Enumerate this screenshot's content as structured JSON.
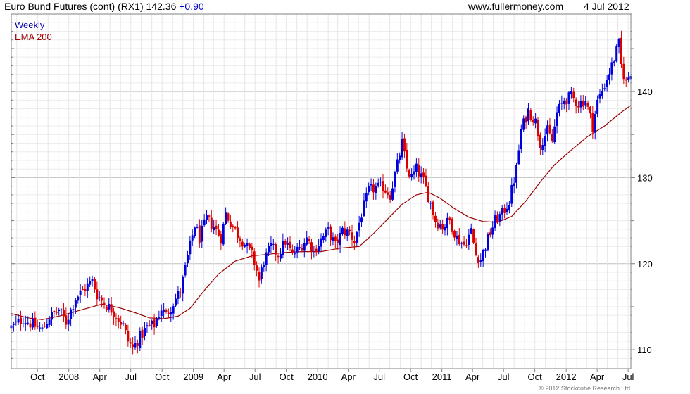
{
  "header": {
    "title": "Euro Bund Futures (cont) (RX1)",
    "last": "142.36",
    "change": "+0.90",
    "site": "www.fullermoney.com",
    "date": "4 Jul 2012"
  },
  "legend": {
    "weekly_label": "Weekly",
    "ema_label": "EMA 200"
  },
  "copyright": "© 2012 Stockcube Research Ltd",
  "colors": {
    "up": "#0000dd",
    "down": "#dd0000",
    "ema": "#990000",
    "grid": "#d6d6d6",
    "frame": "#808080"
  },
  "chart_data": {
    "type": "candlestick",
    "period": "weekly",
    "x_start": "2007-07-16",
    "x_end": "2012-07-09",
    "ylim": [
      107.8,
      149.0
    ],
    "y_ticks": [
      110,
      120,
      130,
      140
    ],
    "x_ticks": [
      {
        "label": "Oct",
        "date": "2007-10-01"
      },
      {
        "label": "2008",
        "date": "2008-01-01"
      },
      {
        "label": "Apr",
        "date": "2008-04-01"
      },
      {
        "label": "Jul",
        "date": "2008-07-01"
      },
      {
        "label": "Oct",
        "date": "2008-10-01"
      },
      {
        "label": "2009",
        "date": "2009-01-01"
      },
      {
        "label": "Apr",
        "date": "2009-04-01"
      },
      {
        "label": "Jul",
        "date": "2009-07-01"
      },
      {
        "label": "Oct",
        "date": "2009-10-01"
      },
      {
        "label": "2010",
        "date": "2010-01-01"
      },
      {
        "label": "Apr",
        "date": "2010-04-01"
      },
      {
        "label": "Jul",
        "date": "2010-07-01"
      },
      {
        "label": "Oct",
        "date": "2010-10-01"
      },
      {
        "label": "2011",
        "date": "2011-01-01"
      },
      {
        "label": "Apr",
        "date": "2011-04-01"
      },
      {
        "label": "Jul",
        "date": "2011-07-01"
      },
      {
        "label": "Oct",
        "date": "2011-10-01"
      },
      {
        "label": "2012",
        "date": "2012-01-01"
      },
      {
        "label": "Apr",
        "date": "2012-04-01"
      },
      {
        "label": "Jul",
        "date": "2012-07-01"
      }
    ],
    "price_path": [
      [
        "2007-07-16",
        112.6
      ],
      [
        "2007-08-20",
        113.6
      ],
      [
        "2007-09-17",
        112.9
      ],
      [
        "2007-10-15",
        112.3
      ],
      [
        "2007-11-05",
        113.8
      ],
      [
        "2007-12-03",
        114.6
      ],
      [
        "2007-12-24",
        113.2
      ],
      [
        "2008-01-21",
        116.0
      ],
      [
        "2008-02-18",
        117.2
      ],
      [
        "2008-03-10",
        118.0
      ],
      [
        "2008-03-24",
        116.4
      ],
      [
        "2008-04-14",
        115.4
      ],
      [
        "2008-05-05",
        114.7
      ],
      [
        "2008-05-26",
        113.6
      ],
      [
        "2008-06-09",
        112.8
      ],
      [
        "2008-06-23",
        111.0
      ],
      [
        "2008-07-07",
        110.2
      ],
      [
        "2008-07-28",
        111.5
      ],
      [
        "2008-08-18",
        112.6
      ],
      [
        "2008-09-08",
        112.9
      ],
      [
        "2008-09-29",
        114.8
      ],
      [
        "2008-10-13",
        114.0
      ],
      [
        "2008-11-03",
        115.5
      ],
      [
        "2008-11-24",
        116.8
      ],
      [
        "2008-12-15",
        120.8
      ],
      [
        "2009-01-05",
        124.5
      ],
      [
        "2009-01-19",
        123.0
      ],
      [
        "2009-02-09",
        125.2
      ],
      [
        "2009-03-02",
        124.3
      ],
      [
        "2009-03-23",
        123.0
      ],
      [
        "2009-04-06",
        125.8
      ],
      [
        "2009-04-20",
        124.8
      ],
      [
        "2009-05-11",
        123.4
      ],
      [
        "2009-06-01",
        122.3
      ],
      [
        "2009-06-22",
        121.0
      ],
      [
        "2009-07-06",
        119.2
      ],
      [
        "2009-07-13",
        118.0
      ],
      [
        "2009-07-27",
        120.4
      ],
      [
        "2009-08-17",
        121.9
      ],
      [
        "2009-09-07",
        121.1
      ],
      [
        "2009-09-28",
        122.6
      ],
      [
        "2009-10-19",
        121.0
      ],
      [
        "2009-11-09",
        121.8
      ],
      [
        "2009-11-30",
        123.0
      ],
      [
        "2009-12-21",
        121.5
      ],
      [
        "2010-01-11",
        122.8
      ],
      [
        "2010-02-01",
        123.8
      ],
      [
        "2010-02-22",
        122.1
      ],
      [
        "2010-03-15",
        123.8
      ],
      [
        "2010-04-05",
        123.6
      ],
      [
        "2010-04-19",
        122.6
      ],
      [
        "2010-05-10",
        125.8
      ],
      [
        "2010-05-31",
        128.5
      ],
      [
        "2010-06-21",
        128.8
      ],
      [
        "2010-07-12",
        128.9
      ],
      [
        "2010-08-02",
        128.0
      ],
      [
        "2010-08-23",
        131.5
      ],
      [
        "2010-09-06",
        134.0
      ],
      [
        "2010-09-20",
        131.0
      ],
      [
        "2010-10-04",
        130.0
      ],
      [
        "2010-10-18",
        131.0
      ],
      [
        "2010-11-08",
        129.6
      ],
      [
        "2010-11-29",
        127.0
      ],
      [
        "2010-12-13",
        125.0
      ],
      [
        "2011-01-03",
        124.3
      ],
      [
        "2011-01-24",
        125.0
      ],
      [
        "2011-02-14",
        123.0
      ],
      [
        "2011-03-07",
        122.2
      ],
      [
        "2011-03-28",
        123.8
      ],
      [
        "2011-04-11",
        121.0
      ],
      [
        "2011-04-25",
        120.5
      ],
      [
        "2011-05-16",
        122.9
      ],
      [
        "2011-06-06",
        125.0
      ],
      [
        "2011-06-27",
        125.8
      ],
      [
        "2011-07-18",
        127.3
      ],
      [
        "2011-08-08",
        131.0
      ],
      [
        "2011-08-22",
        135.5
      ],
      [
        "2011-09-12",
        137.8
      ],
      [
        "2011-10-03",
        136.5
      ],
      [
        "2011-10-17",
        134.0
      ],
      [
        "2011-11-07",
        135.4
      ],
      [
        "2011-11-21",
        134.2
      ],
      [
        "2011-12-05",
        137.5
      ],
      [
        "2011-12-26",
        139.0
      ],
      [
        "2012-01-16",
        139.4
      ],
      [
        "2012-02-06",
        138.6
      ],
      [
        "2012-02-27",
        139.0
      ],
      [
        "2012-03-19",
        136.0
      ],
      [
        "2012-04-02",
        138.8
      ],
      [
        "2012-04-23",
        140.8
      ],
      [
        "2012-05-14",
        143.0
      ],
      [
        "2012-06-04",
        145.5
      ],
      [
        "2012-06-11",
        143.0
      ],
      [
        "2012-06-25",
        141.0
      ],
      [
        "2012-07-09",
        142.36
      ]
    ],
    "ema_200": [
      [
        "2007-07-16",
        114.2
      ],
      [
        "2007-09-03",
        113.7
      ],
      [
        "2007-10-15",
        113.5
      ],
      [
        "2007-12-03",
        113.9
      ],
      [
        "2008-02-04",
        114.6
      ],
      [
        "2008-04-07",
        115.3
      ],
      [
        "2008-05-26",
        114.9
      ],
      [
        "2008-07-14",
        114.3
      ],
      [
        "2008-08-25",
        113.7
      ],
      [
        "2008-10-06",
        113.6
      ],
      [
        "2008-11-17",
        113.9
      ],
      [
        "2008-12-22",
        114.8
      ],
      [
        "2009-02-02",
        116.9
      ],
      [
        "2009-03-16",
        118.8
      ],
      [
        "2009-05-04",
        120.3
      ],
      [
        "2009-06-22",
        120.9
      ],
      [
        "2009-08-10",
        121.1
      ],
      [
        "2009-09-28",
        121.3
      ],
      [
        "2009-11-16",
        121.4
      ],
      [
        "2010-01-11",
        121.4
      ],
      [
        "2010-03-08",
        121.8
      ],
      [
        "2010-05-03",
        122.0
      ],
      [
        "2010-06-14",
        123.5
      ],
      [
        "2010-07-26",
        125.2
      ],
      [
        "2010-09-06",
        126.9
      ],
      [
        "2010-10-18",
        128.0
      ],
      [
        "2010-11-22",
        128.3
      ],
      [
        "2010-12-27",
        127.6
      ],
      [
        "2011-02-07",
        126.4
      ],
      [
        "2011-03-21",
        125.4
      ],
      [
        "2011-05-02",
        124.9
      ],
      [
        "2011-06-13",
        124.8
      ],
      [
        "2011-07-25",
        125.5
      ],
      [
        "2011-09-05",
        127.3
      ],
      [
        "2011-10-17",
        129.5
      ],
      [
        "2011-11-28",
        131.5
      ],
      [
        "2012-01-16",
        133.2
      ],
      [
        "2012-03-05",
        134.8
      ],
      [
        "2012-04-23",
        136.0
      ],
      [
        "2012-06-11",
        137.6
      ],
      [
        "2012-07-09",
        138.4
      ]
    ]
  }
}
